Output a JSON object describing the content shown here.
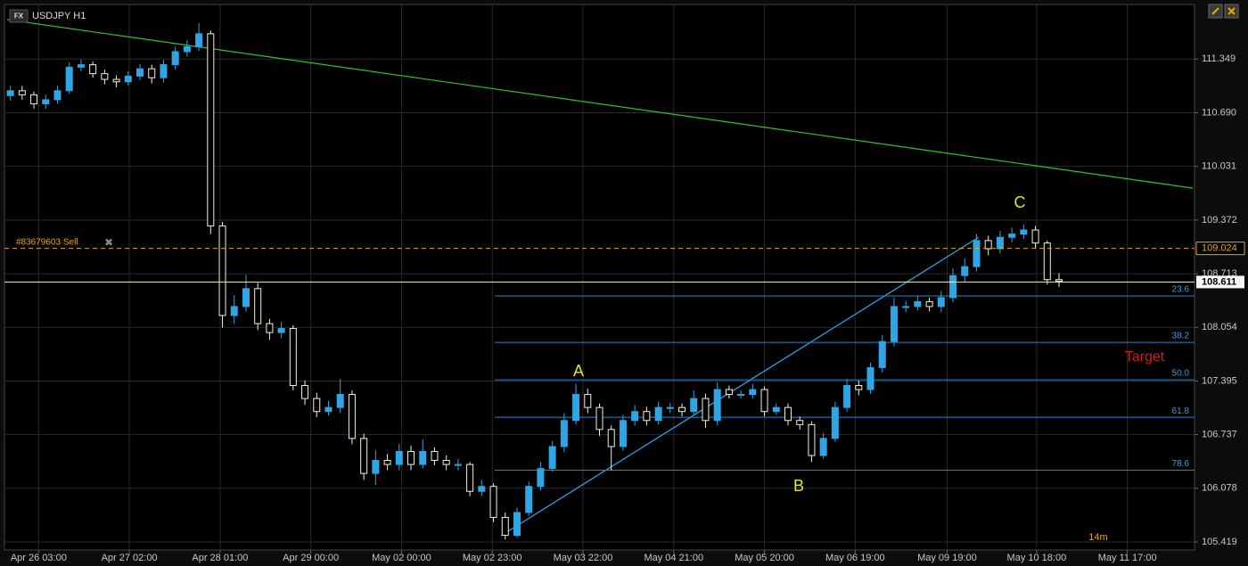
{
  "chart_data": {
    "type": "candlestick",
    "badge": "FX",
    "title": "USDJPY H1",
    "open": [
      110.9,
      110.96,
      110.91,
      110.8,
      110.85,
      110.96,
      111.25,
      111.28,
      111.17,
      111.1,
      111.07,
      111.14,
      111.23,
      111.12,
      111.28,
      111.44,
      111.5,
      111.66,
      109.3,
      108.2,
      108.31,
      108.53,
      108.1,
      107.99,
      108.04,
      107.34,
      107.18,
      107.02,
      107.07,
      107.23,
      106.69,
      106.26,
      106.42,
      106.37,
      106.53,
      106.37,
      106.53,
      106.42,
      106.37,
      106.37,
      106.04,
      106.1,
      105.72,
      105.5,
      105.78,
      106.1,
      106.32,
      106.59,
      106.91,
      107.23,
      107.07,
      106.8,
      106.59,
      106.91,
      107.02,
      106.91,
      107.07,
      107.07,
      107.02,
      107.18,
      106.91,
      107.29,
      107.23,
      107.23,
      107.29,
      107.02,
      107.07,
      106.91,
      106.86,
      106.48,
      106.69,
      107.07,
      107.34,
      107.29,
      107.56,
      107.88,
      108.31,
      108.31,
      108.37,
      108.31,
      108.42,
      108.69,
      108.8,
      109.12,
      109.02,
      109.16,
      109.2,
      109.25,
      109.09,
      108.64
    ],
    "high": [
      111.02,
      111.02,
      110.95,
      110.91,
      111.02,
      111.31,
      111.34,
      111.32,
      111.22,
      111.15,
      111.2,
      111.29,
      111.28,
      111.34,
      111.5,
      111.58,
      111.79,
      111.7,
      109.35,
      108.45,
      108.7,
      108.6,
      108.16,
      108.12,
      108.08,
      107.4,
      107.25,
      107.15,
      107.42,
      107.28,
      106.75,
      106.55,
      106.5,
      106.62,
      106.6,
      106.68,
      106.58,
      106.48,
      106.44,
      106.4,
      106.18,
      106.14,
      105.78,
      105.84,
      106.16,
      106.4,
      106.66,
      107.0,
      107.36,
      107.3,
      107.12,
      106.85,
      106.98,
      107.1,
      107.08,
      107.14,
      107.13,
      107.12,
      107.28,
      107.24,
      107.38,
      107.34,
      107.28,
      107.36,
      107.33,
      107.12,
      107.12,
      106.96,
      106.9,
      106.76,
      107.14,
      107.42,
      107.4,
      107.62,
      107.96,
      108.42,
      108.38,
      108.44,
      108.42,
      108.5,
      108.78,
      108.9,
      109.2,
      109.18,
      109.24,
      109.28,
      109.32,
      109.3,
      109.12,
      108.72
    ],
    "low": [
      110.84,
      110.85,
      110.74,
      110.74,
      110.8,
      110.92,
      111.2,
      111.12,
      111.04,
      111.0,
      111.02,
      111.09,
      111.05,
      111.06,
      111.22,
      111.38,
      111.45,
      109.2,
      108.05,
      108.1,
      108.25,
      108.02,
      107.9,
      107.92,
      107.28,
      107.1,
      106.95,
      106.97,
      107.0,
      106.62,
      106.18,
      106.12,
      106.3,
      106.3,
      106.3,
      106.32,
      106.36,
      106.3,
      106.3,
      105.98,
      105.98,
      105.66,
      105.45,
      105.47,
      105.74,
      106.05,
      106.28,
      106.52,
      106.86,
      107.0,
      106.72,
      106.3,
      106.54,
      106.85,
      106.85,
      106.86,
      107.0,
      106.96,
      106.98,
      106.82,
      106.85,
      107.18,
      107.18,
      107.18,
      106.96,
      106.98,
      106.85,
      106.8,
      106.4,
      106.44,
      106.65,
      107.02,
      107.22,
      107.24,
      107.5,
      107.82,
      108.24,
      108.26,
      108.25,
      108.24,
      108.36,
      108.62,
      108.74,
      108.94,
      108.96,
      109.1,
      109.14,
      109.02,
      108.58,
      108.55
    ],
    "close": [
      110.96,
      110.91,
      110.8,
      110.85,
      110.96,
      111.25,
      111.28,
      111.17,
      111.1,
      111.07,
      111.14,
      111.23,
      111.12,
      111.28,
      111.44,
      111.5,
      111.66,
      109.3,
      108.2,
      108.31,
      108.53,
      108.1,
      107.99,
      108.04,
      107.34,
      107.18,
      107.02,
      107.07,
      107.23,
      106.69,
      106.26,
      106.42,
      106.37,
      106.53,
      106.37,
      106.53,
      106.42,
      106.37,
      106.37,
      106.04,
      106.1,
      105.72,
      105.5,
      105.78,
      106.1,
      106.32,
      106.59,
      106.91,
      107.23,
      107.07,
      106.8,
      106.59,
      106.91,
      107.02,
      106.91,
      107.07,
      107.07,
      107.02,
      107.18,
      106.91,
      107.29,
      107.23,
      107.23,
      107.29,
      107.02,
      107.07,
      106.91,
      106.86,
      106.48,
      106.69,
      107.07,
      107.34,
      107.29,
      107.56,
      107.88,
      108.31,
      108.31,
      108.37,
      108.31,
      108.42,
      108.69,
      108.8,
      109.12,
      109.02,
      109.16,
      109.2,
      109.25,
      109.09,
      108.64,
      108.62
    ],
    "up_color": "#2ea6e6",
    "down_color": "#f2f2d8",
    "xlim": [
      -0.5,
      100.5
    ],
    "xticks": [
      {
        "value": 2.4,
        "label": "Apr 26 03:00"
      },
      {
        "value": 10.1,
        "label": "Apr 27 02:00"
      },
      {
        "value": 17.8,
        "label": "Apr 28 01:00"
      },
      {
        "value": 25.5,
        "label": "Apr 29 00:00"
      },
      {
        "value": 33.2,
        "label": "May 02 00:00"
      },
      {
        "value": 40.9,
        "label": "May 02 23:00"
      },
      {
        "value": 48.6,
        "label": "May 03 22:00"
      },
      {
        "value": 56.3,
        "label": "May 04 21:00"
      },
      {
        "value": 64.0,
        "label": "May 05 20:00"
      },
      {
        "value": 71.7,
        "label": "May 06 19:00"
      },
      {
        "value": 79.5,
        "label": "May 09 19:00"
      },
      {
        "value": 87.1,
        "label": "May 10 18:00"
      },
      {
        "value": 94.8,
        "label": "May 11 17:00"
      }
    ],
    "ylim": [
      105.32,
      112.02
    ],
    "yticks": [
      111.349,
      {
        "value": 110.69,
        "label": "110.690"
      },
      110.031,
      109.372,
      108.713,
      108.054,
      107.395,
      106.737,
      106.078,
      105.419
    ],
    "grid": true,
    "fib_levels": [
      {
        "ratio": "23.6",
        "price": 108.44
      },
      {
        "ratio": "38.2",
        "price": 107.87
      },
      {
        "ratio": "50.0",
        "price": 107.41
      },
      {
        "ratio": "61.8",
        "price": 106.95
      },
      {
        "ratio": "78.6",
        "price": 106.3
      }
    ],
    "order": {
      "label": "#83679603 Sell",
      "price": 109.024
    },
    "last_price": 108.611,
    "annotations": [
      "A",
      "B",
      "C",
      "Target"
    ],
    "timer": "14m"
  }
}
